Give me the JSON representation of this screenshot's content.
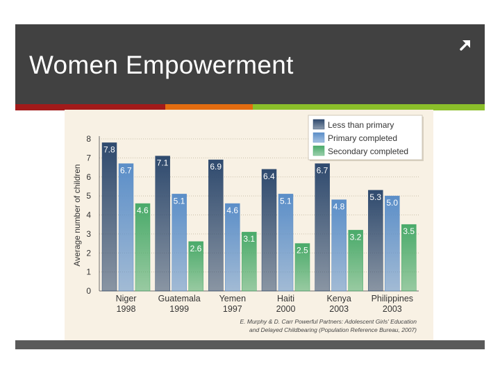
{
  "slide": {
    "title": "Women Empowerment",
    "colors": {
      "header": "#414141",
      "stripe_red": "#a21a1a",
      "stripe_orange": "#e36c10",
      "stripe_green": "#8bbf2a",
      "footer": "#5a5a5a"
    }
  },
  "chart_data": {
    "type": "bar",
    "title": "",
    "xlabel": "",
    "ylabel": "Average number of children",
    "ylim": [
      0,
      8
    ],
    "yticks": [
      "0",
      "1",
      "2",
      "3",
      "4",
      "5",
      "6",
      "7",
      "8"
    ],
    "categories": [
      "Niger",
      "Guatemala",
      "Yemen",
      "Haiti",
      "Kenya",
      "Philippines"
    ],
    "years": [
      "1998",
      "1999",
      "1997",
      "2000",
      "2003",
      "2003"
    ],
    "series": [
      {
        "name": "Less than primary",
        "values": [
          7.8,
          7.1,
          6.9,
          6.4,
          6.7,
          5.3
        ],
        "labels": [
          "7.8",
          "7.1",
          "6.9",
          "6.4",
          "6.7",
          "5.3"
        ],
        "color": "#2f4a6e"
      },
      {
        "name": "Primary completed",
        "values": [
          6.7,
          5.1,
          4.6,
          5.1,
          4.8,
          5.0
        ],
        "labels": [
          "6.7",
          "5.1",
          "4.6",
          "5.1",
          "4.8",
          "5.0"
        ],
        "color": "#5b8ec8"
      },
      {
        "name": "Secondary completed",
        "values": [
          4.6,
          2.6,
          3.1,
          2.5,
          3.2,
          3.5
        ],
        "labels": [
          "4.6",
          "2.6",
          "3.1",
          "2.5",
          "3.2",
          "3.5"
        ],
        "color": "#4aaa6a"
      }
    ],
    "legend": {
      "position": "top-right"
    },
    "source_line1": "E. Murphy & D. Carr Powerful Partners: Adolescent Girls' Education",
    "source_line2": "and Delayed Childbearing (Population Reference Bureau, 2007)"
  }
}
